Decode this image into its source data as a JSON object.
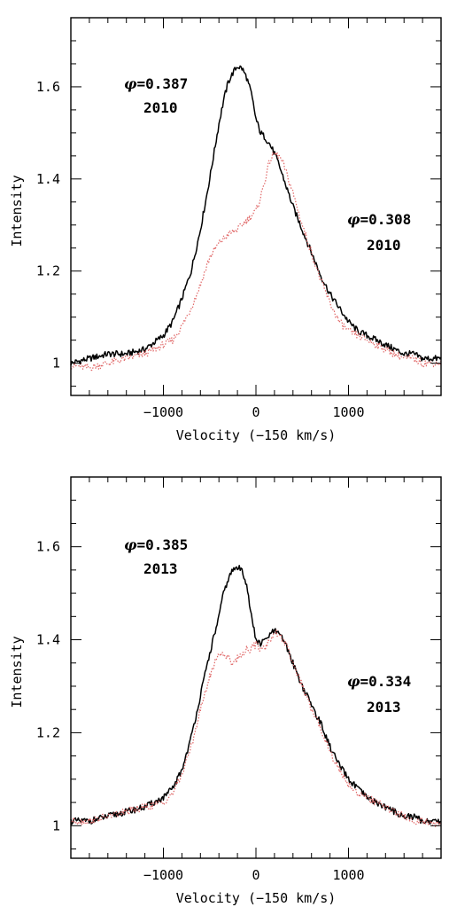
{
  "chart_data": [
    {
      "type": "line",
      "xlabel": "Velocity (−150 km/s)",
      "ylabel": "Intensity",
      "xlim": [
        -2000,
        2000
      ],
      "ylim": [
        0.93,
        1.75
      ],
      "xticks": [
        -1000,
        0,
        1000
      ],
      "xtick_labels": [
        "−1000",
        "0",
        "1000"
      ],
      "yticks": [
        1.0,
        1.2,
        1.4,
        1.6
      ],
      "ytick_labels": [
        "1",
        "1.2",
        "1.4",
        "1.6"
      ],
      "grid": false,
      "annotations": [
        {
          "symbol": "φ",
          "text": "=0.387",
          "year": "2010",
          "series": 0
        },
        {
          "symbol": "φ",
          "text": "=0.308",
          "year": "2010",
          "series": 1
        }
      ],
      "series": [
        {
          "color": "#000000",
          "style": "solid",
          "x": [
            -2000,
            -1800,
            -1600,
            -1400,
            -1200,
            -1000,
            -900,
            -800,
            -700,
            -600,
            -500,
            -450,
            -400,
            -350,
            -300,
            -250,
            -200,
            -150,
            -100,
            -50,
            0,
            50,
            100,
            150,
            200,
            250,
            300,
            350,
            400,
            500,
            600,
            700,
            800,
            900,
            1000,
            1100,
            1200,
            1300,
            1400,
            1500,
            1600,
            1700,
            1800,
            1900,
            2000
          ],
          "y": [
            1.0,
            1.01,
            1.02,
            1.02,
            1.03,
            1.06,
            1.09,
            1.14,
            1.2,
            1.29,
            1.4,
            1.46,
            1.52,
            1.57,
            1.61,
            1.63,
            1.645,
            1.64,
            1.62,
            1.585,
            1.53,
            1.5,
            1.49,
            1.475,
            1.455,
            1.43,
            1.4,
            1.37,
            1.34,
            1.29,
            1.24,
            1.19,
            1.15,
            1.12,
            1.09,
            1.07,
            1.06,
            1.05,
            1.04,
            1.03,
            1.02,
            1.02,
            1.01,
            1.01,
            1.01
          ]
        },
        {
          "color": "#e06666",
          "style": "dotted",
          "x": [
            -2000,
            -1800,
            -1600,
            -1400,
            -1200,
            -1000,
            -900,
            -800,
            -700,
            -600,
            -500,
            -400,
            -300,
            -200,
            -100,
            0,
            50,
            100,
            150,
            200,
            250,
            300,
            350,
            400,
            500,
            600,
            700,
            800,
            900,
            1000,
            1100,
            1200,
            1300,
            1400,
            1500,
            1600,
            1700,
            1800,
            1900,
            2000
          ],
          "y": [
            0.995,
            0.99,
            1.0,
            1.01,
            1.02,
            1.04,
            1.05,
            1.08,
            1.12,
            1.17,
            1.23,
            1.26,
            1.28,
            1.29,
            1.31,
            1.33,
            1.36,
            1.4,
            1.44,
            1.455,
            1.45,
            1.43,
            1.4,
            1.37,
            1.3,
            1.24,
            1.18,
            1.13,
            1.09,
            1.07,
            1.06,
            1.05,
            1.04,
            1.03,
            1.02,
            1.01,
            1.01,
            1.0,
            1.0,
            1.0
          ]
        }
      ]
    },
    {
      "type": "line",
      "xlabel": "Velocity (−150 km/s)",
      "ylabel": "Intensity",
      "xlim": [
        -2000,
        2000
      ],
      "ylim": [
        0.93,
        1.75
      ],
      "xticks": [
        -1000,
        0,
        1000
      ],
      "xtick_labels": [
        "−1000",
        "0",
        "1000"
      ],
      "yticks": [
        1.0,
        1.2,
        1.4,
        1.6
      ],
      "ytick_labels": [
        "1",
        "1.2",
        "1.4",
        "1.6"
      ],
      "grid": false,
      "annotations": [
        {
          "symbol": "φ",
          "text": "=0.385",
          "year": "2013",
          "series": 0
        },
        {
          "symbol": "φ",
          "text": "=0.334",
          "year": "2013",
          "series": 1
        }
      ],
      "series": [
        {
          "color": "#000000",
          "style": "solid",
          "x": [
            -2000,
            -1800,
            -1600,
            -1400,
            -1200,
            -1000,
            -900,
            -800,
            -700,
            -600,
            -500,
            -450,
            -400,
            -350,
            -300,
            -250,
            -200,
            -150,
            -100,
            -50,
            0,
            50,
            100,
            150,
            200,
            250,
            300,
            400,
            500,
            600,
            700,
            800,
            900,
            1000,
            1100,
            1200,
            1300,
            1400,
            1500,
            1600,
            1700,
            1800,
            1900,
            2000
          ],
          "y": [
            1.01,
            1.01,
            1.02,
            1.03,
            1.04,
            1.06,
            1.08,
            1.12,
            1.19,
            1.28,
            1.37,
            1.41,
            1.45,
            1.5,
            1.53,
            1.55,
            1.555,
            1.55,
            1.52,
            1.45,
            1.4,
            1.39,
            1.4,
            1.41,
            1.42,
            1.41,
            1.4,
            1.35,
            1.3,
            1.26,
            1.22,
            1.17,
            1.13,
            1.1,
            1.08,
            1.06,
            1.05,
            1.04,
            1.03,
            1.02,
            1.02,
            1.01,
            1.01,
            1.01
          ]
        },
        {
          "color": "#e06666",
          "style": "dotted",
          "x": [
            -2000,
            -1800,
            -1600,
            -1400,
            -1200,
            -1000,
            -900,
            -800,
            -700,
            -600,
            -500,
            -450,
            -400,
            -350,
            -300,
            -250,
            -200,
            -150,
            -100,
            -50,
            0,
            50,
            100,
            150,
            200,
            250,
            300,
            400,
            500,
            600,
            700,
            800,
            900,
            1000,
            1100,
            1200,
            1300,
            1400,
            1500,
            1600,
            1700,
            1800,
            1900,
            2000
          ],
          "y": [
            1.01,
            1.01,
            1.02,
            1.03,
            1.04,
            1.05,
            1.07,
            1.11,
            1.17,
            1.25,
            1.32,
            1.35,
            1.37,
            1.37,
            1.36,
            1.35,
            1.36,
            1.37,
            1.38,
            1.38,
            1.39,
            1.38,
            1.385,
            1.4,
            1.415,
            1.41,
            1.4,
            1.35,
            1.3,
            1.25,
            1.21,
            1.16,
            1.12,
            1.09,
            1.07,
            1.06,
            1.05,
            1.04,
            1.03,
            1.02,
            1.01,
            1.01,
            1.005,
            1.0
          ]
        }
      ]
    }
  ]
}
